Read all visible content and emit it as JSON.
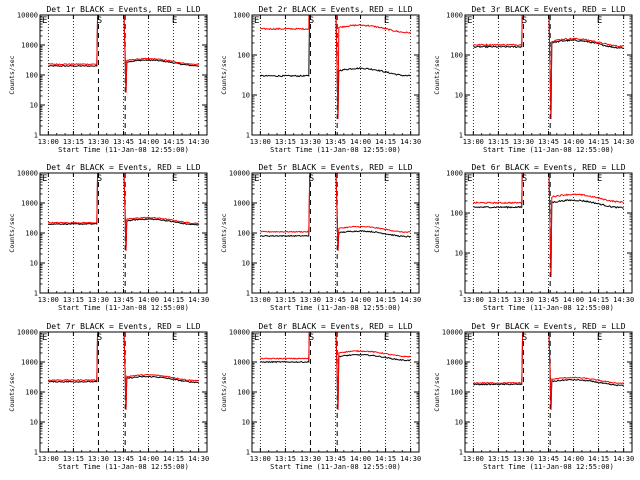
{
  "colors": {
    "events": "#000000",
    "lld": "#ff0000",
    "background": "#ffffff"
  },
  "panels": [
    {
      "title": "Det 1r BLACK = Events, RED = LLD",
      "xlabel": "Start Time (11-Jan-08 12:55:00)",
      "ylabel": "Counts/sec",
      "chart_data": {
        "type": "line",
        "yscale": "log",
        "ylim": [
          1,
          10000
        ],
        "xlim": [
          "12:55",
          "14:35"
        ],
        "series": [
          {
            "name": "Events",
            "color": "#000000",
            "pre": 200,
            "post": 270
          },
          {
            "name": "LLD",
            "color": "#ff0000",
            "pre": 230,
            "post": 300
          }
        ]
      }
    },
    {
      "title": "Det 2r BLACK = Events, RED = LLD",
      "xlabel": "Start Time (11-Jan-08 12:55:00)",
      "ylabel": "Counts/sec",
      "chart_data": {
        "type": "line",
        "yscale": "log",
        "ylim": [
          1,
          1000
        ],
        "xlim": [
          "12:55",
          "14:35"
        ],
        "series": [
          {
            "name": "Events",
            "color": "#000000",
            "pre": 30,
            "post": 40
          },
          {
            "name": "LLD",
            "color": "#ff0000",
            "pre": 450,
            "post": 480
          }
        ]
      }
    },
    {
      "title": "Det 3r BLACK = Events, RED = LLD",
      "xlabel": "Start Time (11-Jan-08 12:55:00)",
      "ylabel": "Counts/sec",
      "chart_data": {
        "type": "line",
        "yscale": "log",
        "ylim": [
          1,
          1000
        ],
        "xlim": [
          "12:55",
          "14:35"
        ],
        "series": [
          {
            "name": "Events",
            "color": "#000000",
            "pre": 160,
            "post": 200
          },
          {
            "name": "LLD",
            "color": "#ff0000",
            "pre": 180,
            "post": 220
          }
        ]
      }
    },
    {
      "title": "Det 4r BLACK = Events, RED = LLD",
      "xlabel": "Start Time (11-Jan-08 12:55:00)",
      "ylabel": "Counts/sec",
      "chart_data": {
        "type": "line",
        "yscale": "log",
        "ylim": [
          1,
          10000
        ],
        "xlim": [
          "12:55",
          "14:35"
        ],
        "series": [
          {
            "name": "Events",
            "color": "#000000",
            "pre": 200,
            "post": 250
          },
          {
            "name": "LLD",
            "color": "#ff0000",
            "pre": 220,
            "post": 280
          }
        ]
      }
    },
    {
      "title": "Det 5r BLACK = Events, RED = LLD",
      "xlabel": "Start Time (11-Jan-08 12:55:00)",
      "ylabel": "Counts/sec",
      "chart_data": {
        "type": "line",
        "yscale": "log",
        "ylim": [
          1,
          10000
        ],
        "xlim": [
          "12:55",
          "14:35"
        ],
        "series": [
          {
            "name": "Events",
            "color": "#000000",
            "pre": 80,
            "post": 100
          },
          {
            "name": "LLD",
            "color": "#ff0000",
            "pre": 110,
            "post": 140
          }
        ]
      }
    },
    {
      "title": "Det 6r BLACK = Events, RED = LLD",
      "xlabel": "Start Time (11-Jan-08 12:55:00)",
      "ylabel": "Counts/sec",
      "chart_data": {
        "type": "line",
        "yscale": "log",
        "ylim": [
          1,
          1000
        ],
        "xlim": [
          "12:55",
          "14:35"
        ],
        "series": [
          {
            "name": "Events",
            "color": "#000000",
            "pre": 140,
            "post": 180
          },
          {
            "name": "LLD",
            "color": "#ff0000",
            "pre": 180,
            "post": 250
          }
        ]
      }
    },
    {
      "title": "Det 7r BLACK = Events, RED = LLD",
      "xlabel": "Start Time (11-Jan-08 12:55:00)",
      "ylabel": "Counts/sec",
      "chart_data": {
        "type": "line",
        "yscale": "log",
        "ylim": [
          1,
          10000
        ],
        "xlim": [
          "12:55",
          "14:35"
        ],
        "series": [
          {
            "name": "Events",
            "color": "#000000",
            "pre": 220,
            "post": 280
          },
          {
            "name": "LLD",
            "color": "#ff0000",
            "pre": 250,
            "post": 320
          }
        ]
      }
    },
    {
      "title": "Det 8r BLACK = Events, RED = LLD",
      "xlabel": "Start Time (11-Jan-08 12:55:00)",
      "ylabel": "Counts/sec",
      "chart_data": {
        "type": "line",
        "yscale": "log",
        "ylim": [
          1,
          10000
        ],
        "xlim": [
          "12:55",
          "14:35"
        ],
        "series": [
          {
            "name": "Events",
            "color": "#000000",
            "pre": 1000,
            "post": 1500
          },
          {
            "name": "LLD",
            "color": "#ff0000",
            "pre": 1300,
            "post": 2000
          }
        ]
      }
    },
    {
      "title": "Det 9r BLACK = Events, RED = LLD",
      "xlabel": "Start Time (11-Jan-08 12:55:00)",
      "ylabel": "Counts/sec",
      "chart_data": {
        "type": "line",
        "yscale": "log",
        "ylim": [
          1,
          10000
        ],
        "xlim": [
          "12:55",
          "14:35"
        ],
        "series": [
          {
            "name": "Events",
            "color": "#000000",
            "pre": 180,
            "post": 220
          },
          {
            "name": "LLD",
            "color": "#ff0000",
            "pre": 200,
            "post": 260
          }
        ]
      }
    }
  ],
  "xticks": [
    "13:00",
    "13:15",
    "13:30",
    "13:45",
    "14:00",
    "14:15",
    "14:30"
  ],
  "markers": [
    {
      "label": "E",
      "time": "12:55"
    },
    {
      "label": "S",
      "time": "13:30"
    },
    {
      "label": "E",
      "time": "14:15"
    }
  ],
  "dashed_lines": [
    "13:30",
    "13:46"
  ]
}
